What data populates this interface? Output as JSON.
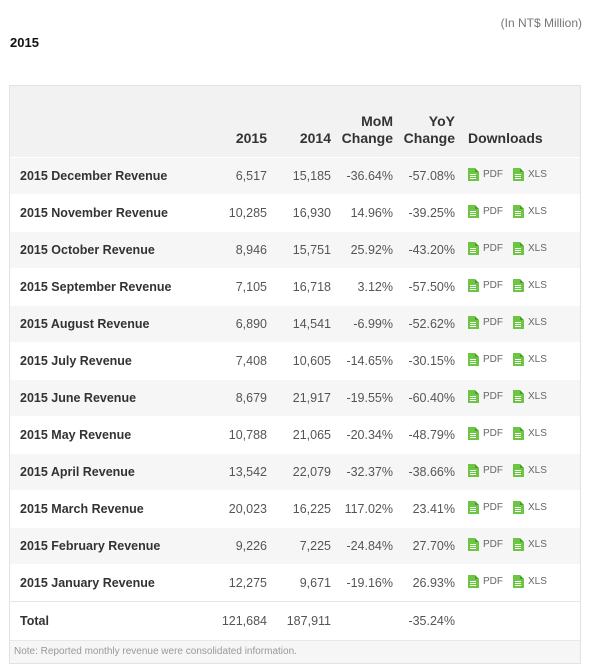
{
  "header": {
    "year_title": "2015",
    "units": "(In NT$ Million)"
  },
  "table": {
    "columns": {
      "col_2015": "2015",
      "col_2014": "2014",
      "mom_line1": "MoM",
      "mom_line2": "Change",
      "yoy_line1": "YoY",
      "yoy_line2": "Change",
      "downloads": "Downloads"
    },
    "rows": [
      {
        "label": "2015 December Revenue",
        "v2015": "6,517",
        "v2014": "15,185",
        "mom": "-36.64%",
        "yoy": "-57.08%"
      },
      {
        "label": "2015 November Revenue",
        "v2015": "10,285",
        "v2014": "16,930",
        "mom": "14.96%",
        "yoy": "-39.25%"
      },
      {
        "label": "2015 October Revenue",
        "v2015": "8,946",
        "v2014": "15,751",
        "mom": "25.92%",
        "yoy": "-43.20%"
      },
      {
        "label": "2015 September Revenue",
        "v2015": "7,105",
        "v2014": "16,718",
        "mom": "3.12%",
        "yoy": "-57.50%"
      },
      {
        "label": "2015 August Revenue",
        "v2015": "6,890",
        "v2014": "14,541",
        "mom": "-6.99%",
        "yoy": "-52.62%"
      },
      {
        "label": "2015 July Revenue",
        "v2015": "7,408",
        "v2014": "10,605",
        "mom": "-14.65%",
        "yoy": "-30.15%"
      },
      {
        "label": "2015 June Revenue",
        "v2015": "8,679",
        "v2014": "21,917",
        "mom": "-19.55%",
        "yoy": "-60.40%"
      },
      {
        "label": "2015 May Revenue",
        "v2015": "10,788",
        "v2014": "21,065",
        "mom": "-20.34%",
        "yoy": "-48.79%"
      },
      {
        "label": "2015 April Revenue",
        "v2015": "13,542",
        "v2014": "22,079",
        "mom": "-32.37%",
        "yoy": "-38.66%"
      },
      {
        "label": "2015 March Revenue",
        "v2015": "20,023",
        "v2014": "16,225",
        "mom": "117.02%",
        "yoy": "23.41%"
      },
      {
        "label": "2015 February Revenue",
        "v2015": "9,226",
        "v2014": "7,225",
        "mom": "-24.84%",
        "yoy": "27.70%"
      },
      {
        "label": "2015 January Revenue",
        "v2015": "12,275",
        "v2014": "9,671",
        "mom": "-19.16%",
        "yoy": "26.93%"
      }
    ],
    "downloads": {
      "pdf_label": "PDF",
      "xls_label": "XLS",
      "icon": "file-icon",
      "icon_color": "#6cc644"
    },
    "total": {
      "label": "Total",
      "v2015": "121,684",
      "v2014": "187,911",
      "mom": "",
      "yoy": "-35.24%"
    },
    "note": "Note: Reported monthly revenue were consolidated information."
  }
}
